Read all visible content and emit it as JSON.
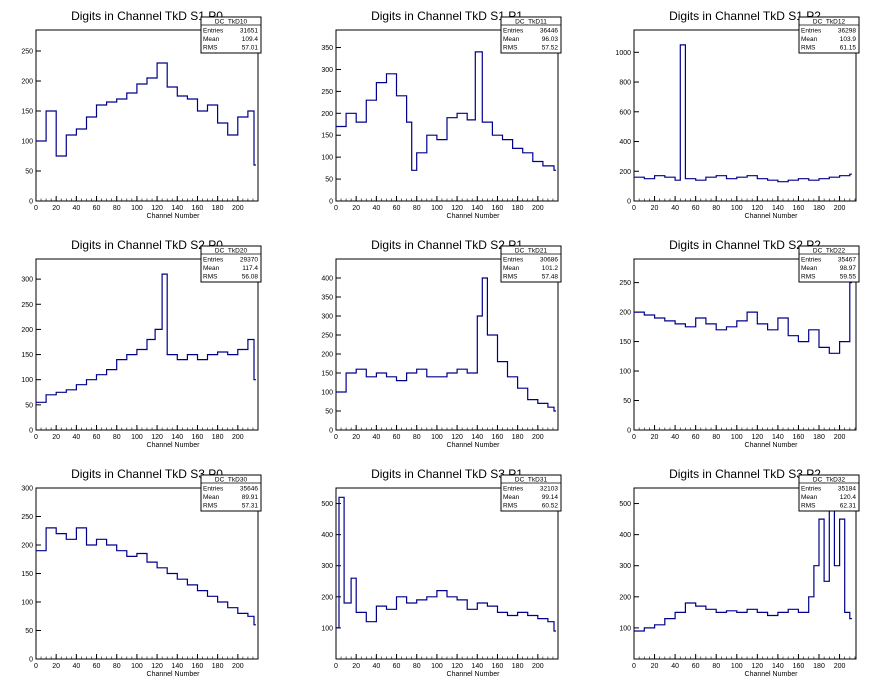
{
  "page": {
    "colors": {
      "background": "#ffffff",
      "histogram_line": "#00008b",
      "frame": "#000000"
    }
  },
  "chart_data": [
    {
      "type": "line",
      "title": "Digits in Channel TkD S1 P0",
      "xlabel": "Channel Number",
      "ylabel": "",
      "xlim": [
        0,
        220
      ],
      "ylim": [
        0,
        285
      ],
      "xticks": [
        0,
        20,
        40,
        60,
        80,
        100,
        120,
        140,
        160,
        180,
        200
      ],
      "yticks": [
        0,
        50,
        100,
        150,
        200,
        250
      ],
      "stats": {
        "name": "DC_TkD10",
        "entries": "31651",
        "mean": "109.4",
        "rms": "57.01",
        "labels": [
          "Entries",
          "Mean",
          "RMS"
        ]
      },
      "series": [
        {
          "x": [
            0,
            10,
            20,
            30,
            40,
            50,
            60,
            70,
            80,
            90,
            100,
            110,
            120,
            130,
            140,
            150,
            160,
            170,
            180,
            190,
            200,
            210,
            216
          ],
          "y": [
            100,
            150,
            75,
            110,
            120,
            140,
            160,
            165,
            170,
            180,
            195,
            205,
            230,
            190,
            175,
            170,
            150,
            160,
            130,
            110,
            140,
            150,
            60
          ]
        }
      ]
    },
    {
      "type": "line",
      "title": "Digits in Channel TkD S1 P1",
      "xlabel": "Channel Number",
      "ylabel": "",
      "xlim": [
        0,
        220
      ],
      "ylim": [
        0,
        390
      ],
      "xticks": [
        0,
        20,
        40,
        60,
        80,
        100,
        120,
        140,
        160,
        180,
        200
      ],
      "yticks": [
        0,
        50,
        100,
        150,
        200,
        250,
        300,
        350
      ],
      "stats": {
        "name": "DC_TkD11",
        "entries": "36446",
        "mean": "96.03",
        "rms": "57.52",
        "labels": [
          "Entries",
          "Mean",
          "RMS"
        ]
      },
      "series": [
        {
          "x": [
            0,
            10,
            20,
            30,
            40,
            50,
            60,
            70,
            75,
            80,
            90,
            100,
            110,
            120,
            130,
            138,
            145,
            155,
            165,
            175,
            185,
            195,
            205,
            216
          ],
          "y": [
            170,
            200,
            180,
            230,
            270,
            290,
            240,
            180,
            70,
            110,
            150,
            140,
            190,
            200,
            185,
            340,
            180,
            150,
            140,
            120,
            110,
            90,
            80,
            70
          ]
        }
      ]
    },
    {
      "type": "line",
      "title": "Digits in Channel TkD S1 P2",
      "xlabel": "Channel Number",
      "ylabel": "",
      "xlim": [
        0,
        216
      ],
      "ylim": [
        0,
        1150
      ],
      "xticks": [
        0,
        20,
        40,
        60,
        80,
        100,
        120,
        140,
        160,
        180,
        200
      ],
      "yticks": [
        0,
        200,
        400,
        600,
        800,
        1000
      ],
      "stats": {
        "name": "DC_TkD12",
        "entries": "36298",
        "mean": "103.9",
        "rms": "61.15",
        "labels": [
          "Entries",
          "Mean",
          "RMS"
        ]
      },
      "series": [
        {
          "x": [
            0,
            10,
            20,
            30,
            40,
            45,
            50,
            60,
            70,
            80,
            90,
            100,
            110,
            120,
            130,
            140,
            150,
            160,
            170,
            180,
            190,
            200,
            210
          ],
          "y": [
            160,
            150,
            170,
            160,
            140,
            1050,
            150,
            140,
            160,
            170,
            150,
            160,
            170,
            150,
            140,
            130,
            140,
            150,
            140,
            150,
            160,
            170,
            180
          ]
        }
      ]
    },
    {
      "type": "line",
      "title": "Digits in Channel TkD S2 P0",
      "xlabel": "Channel Number",
      "ylabel": "",
      "xlim": [
        0,
        220
      ],
      "ylim": [
        0,
        340
      ],
      "xticks": [
        0,
        20,
        40,
        60,
        80,
        100,
        120,
        140,
        160,
        180,
        200
      ],
      "yticks": [
        0,
        50,
        100,
        150,
        200,
        250,
        300
      ],
      "stats": {
        "name": "DC_TkD20",
        "entries": "29370",
        "mean": "117.4",
        "rms": "56.08",
        "labels": [
          "Entries",
          "Mean",
          "RMS"
        ]
      },
      "series": [
        {
          "x": [
            0,
            10,
            20,
            30,
            40,
            50,
            60,
            70,
            80,
            90,
            100,
            110,
            118,
            125,
            130,
            140,
            150,
            160,
            170,
            180,
            190,
            200,
            210,
            216
          ],
          "y": [
            55,
            70,
            75,
            80,
            90,
            100,
            110,
            120,
            140,
            150,
            160,
            180,
            200,
            310,
            150,
            140,
            150,
            140,
            150,
            155,
            150,
            160,
            180,
            100
          ]
        }
      ]
    },
    {
      "type": "line",
      "title": "Digits in Channel TkD S2 P1",
      "xlabel": "Channel Number",
      "ylabel": "",
      "xlim": [
        0,
        220
      ],
      "ylim": [
        0,
        450
      ],
      "xticks": [
        0,
        20,
        40,
        60,
        80,
        100,
        120,
        140,
        160,
        180,
        200
      ],
      "yticks": [
        0,
        50,
        100,
        150,
        200,
        250,
        300,
        350,
        400
      ],
      "stats": {
        "name": "DC_TkD21",
        "entries": "30686",
        "mean": "101.2",
        "rms": "57.48",
        "labels": [
          "Entries",
          "Mean",
          "RMS"
        ]
      },
      "series": [
        {
          "x": [
            0,
            10,
            20,
            30,
            40,
            50,
            60,
            70,
            80,
            90,
            100,
            110,
            120,
            130,
            140,
            145,
            150,
            160,
            170,
            180,
            190,
            200,
            210,
            216
          ],
          "y": [
            100,
            150,
            160,
            140,
            150,
            140,
            130,
            150,
            160,
            140,
            140,
            150,
            160,
            150,
            300,
            400,
            250,
            180,
            140,
            110,
            80,
            70,
            60,
            50
          ]
        }
      ]
    },
    {
      "type": "line",
      "title": "Digits in Channel TkD S2 P2",
      "xlabel": "Channel Number",
      "ylabel": "",
      "xlim": [
        0,
        216
      ],
      "ylim": [
        0,
        290
      ],
      "xticks": [
        0,
        20,
        40,
        60,
        80,
        100,
        120,
        140,
        160,
        180,
        200
      ],
      "yticks": [
        0,
        50,
        100,
        150,
        200,
        250
      ],
      "stats": {
        "name": "DC_TkD22",
        "entries": "35467",
        "mean": "98.97",
        "rms": "59.55",
        "labels": [
          "Entries",
          "Mean",
          "RMS"
        ]
      },
      "series": [
        {
          "x": [
            0,
            10,
            20,
            30,
            40,
            50,
            60,
            70,
            80,
            90,
            100,
            110,
            120,
            130,
            140,
            150,
            160,
            170,
            180,
            190,
            200,
            210
          ],
          "y": [
            200,
            195,
            190,
            185,
            180,
            175,
            190,
            180,
            170,
            175,
            185,
            200,
            180,
            170,
            190,
            160,
            150,
            170,
            140,
            130,
            150,
            250
          ]
        }
      ]
    },
    {
      "type": "line",
      "title": "Digits in Channel TkD S3 P0",
      "xlabel": "Channel Number",
      "ylabel": "",
      "xlim": [
        0,
        220
      ],
      "ylim": [
        0,
        300
      ],
      "xticks": [
        0,
        20,
        40,
        60,
        80,
        100,
        120,
        140,
        160,
        180,
        200
      ],
      "yticks": [
        0,
        50,
        100,
        150,
        200,
        250,
        300
      ],
      "stats": {
        "name": "DC_TkD30",
        "entries": "35646",
        "mean": "89.91",
        "rms": "57.31",
        "labels": [
          "Entries",
          "Mean",
          "RMS"
        ]
      },
      "series": [
        {
          "x": [
            0,
            10,
            20,
            30,
            40,
            50,
            60,
            70,
            80,
            90,
            100,
            110,
            120,
            130,
            140,
            150,
            160,
            170,
            180,
            190,
            200,
            210,
            216
          ],
          "y": [
            190,
            230,
            220,
            210,
            230,
            200,
            210,
            200,
            190,
            180,
            185,
            170,
            160,
            150,
            140,
            130,
            120,
            110,
            100,
            90,
            80,
            75,
            60
          ]
        }
      ]
    },
    {
      "type": "line",
      "title": "Digits in Channel TkD S3 P1",
      "xlabel": "Channel Number",
      "ylabel": "",
      "xlim": [
        0,
        220
      ],
      "ylim": [
        0,
        550
      ],
      "xticks": [
        0,
        20,
        40,
        60,
        80,
        100,
        120,
        140,
        160,
        180,
        200
      ],
      "yticks": [
        100,
        200,
        300,
        400,
        500
      ],
      "stats": {
        "name": "DC_TkD31",
        "entries": "32103",
        "mean": "99.14",
        "rms": "60.52",
        "labels": [
          "Entries",
          "Mean",
          "RMS"
        ]
      },
      "series": [
        {
          "x": [
            0,
            3,
            8,
            15,
            20,
            30,
            40,
            50,
            60,
            70,
            80,
            90,
            100,
            110,
            120,
            130,
            140,
            150,
            160,
            170,
            180,
            190,
            200,
            210,
            216
          ],
          "y": [
            100,
            520,
            180,
            260,
            150,
            120,
            170,
            160,
            200,
            180,
            190,
            200,
            220,
            200,
            190,
            160,
            180,
            170,
            150,
            140,
            150,
            140,
            130,
            120,
            90
          ]
        }
      ]
    },
    {
      "type": "line",
      "title": "Digits in Channel TkD S3 P2",
      "xlabel": "Channel Number",
      "ylabel": "",
      "xlim": [
        0,
        216
      ],
      "ylim": [
        0,
        550
      ],
      "xticks": [
        0,
        20,
        40,
        60,
        80,
        100,
        120,
        140,
        160,
        180,
        200
      ],
      "yticks": [
        100,
        200,
        300,
        400,
        500
      ],
      "stats": {
        "name": "DC_TkD32",
        "entries": "35184",
        "mean": "120.4",
        "rms": "62.31",
        "labels": [
          "Entries",
          "Mean",
          "RMS"
        ]
      },
      "series": [
        {
          "x": [
            0,
            10,
            20,
            30,
            40,
            50,
            60,
            70,
            80,
            90,
            100,
            110,
            120,
            130,
            140,
            150,
            160,
            170,
            175,
            180,
            185,
            190,
            195,
            200,
            205,
            210
          ],
          "y": [
            90,
            100,
            110,
            130,
            150,
            180,
            170,
            160,
            150,
            155,
            150,
            160,
            150,
            140,
            150,
            160,
            150,
            200,
            300,
            450,
            250,
            520,
            300,
            450,
            150,
            130
          ]
        }
      ]
    }
  ]
}
